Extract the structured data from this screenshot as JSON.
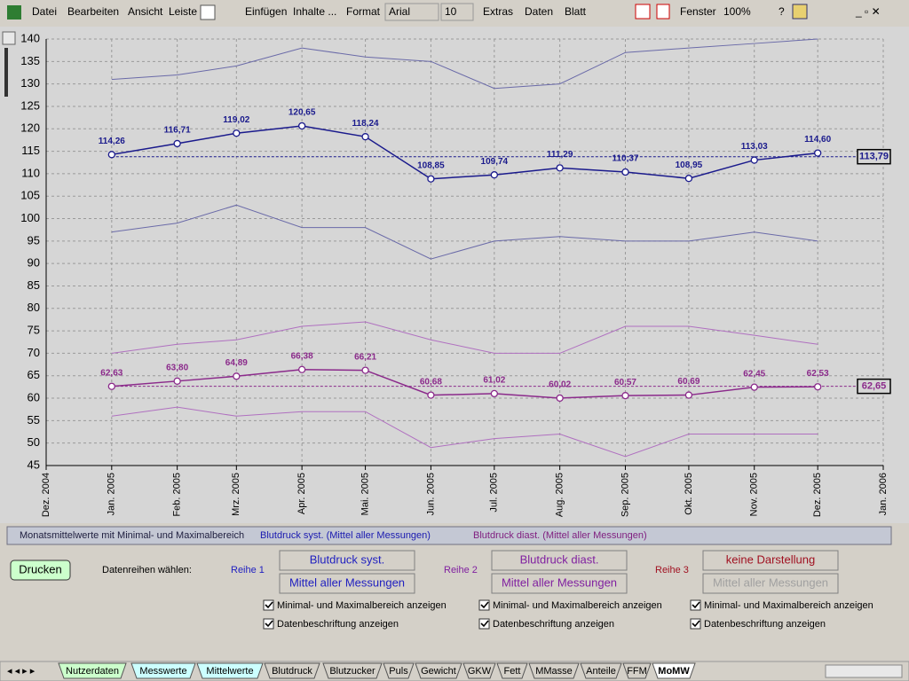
{
  "menu": {
    "items": [
      "Datei",
      "Bearbeiten",
      "Ansicht",
      "Leiste",
      "Einfügen",
      "Inhalte ...",
      "Format",
      "Extras",
      "Daten",
      "Blatt",
      "Fenster",
      "?"
    ],
    "font": "Arial",
    "size": "10",
    "zoom": "100%"
  },
  "chart_data": {
    "type": "line",
    "x": [
      "2005-01",
      "2005-02",
      "2005-03",
      "2005-04",
      "2005-05",
      "2005-06",
      "2005-07",
      "2005-08",
      "2005-09",
      "2005-10",
      "2005-11",
      "2005-12"
    ],
    "xlim": [
      "2004-12",
      "2006-01"
    ],
    "xticks": [
      {
        "value": "2004-12",
        "label": "Dez. 2004"
      },
      {
        "value": "2005-01",
        "label": "Jan. 2005"
      },
      {
        "value": "2005-02",
        "label": "Feb. 2005"
      },
      {
        "value": "2005-03",
        "label": "Mrz. 2005"
      },
      {
        "value": "2005-04",
        "label": "Apr. 2005"
      },
      {
        "value": "2005-05",
        "label": "Mai. 2005"
      },
      {
        "value": "2005-06",
        "label": "Jun. 2005"
      },
      {
        "value": "2005-07",
        "label": "Jul. 2005"
      },
      {
        "value": "2005-08",
        "label": "Aug. 2005"
      },
      {
        "value": "2005-09",
        "label": "Sep. 2005"
      },
      {
        "value": "2005-10",
        "label": "Okt. 2005"
      },
      {
        "value": "2005-11",
        "label": "Nov. 2005"
      },
      {
        "value": "2005-12",
        "label": "Dez. 2005"
      },
      {
        "value": "2006-01",
        "label": "Jan. 2006"
      }
    ],
    "ylim": [
      45,
      140
    ],
    "yticks": [
      45,
      50,
      55,
      60,
      65,
      70,
      75,
      80,
      85,
      90,
      95,
      100,
      105,
      110,
      115,
      120,
      125,
      130,
      135,
      140
    ],
    "grid": true,
    "series": [
      {
        "color": "#6a6aa8",
        "values": [
          131,
          132,
          134,
          138,
          136,
          135,
          129,
          130,
          137,
          138,
          139,
          140
        ]
      },
      {
        "color": "#1a1a8c",
        "markers": true,
        "values": [
          114.26,
          116.71,
          119.02,
          120.65,
          118.24,
          108.85,
          109.74,
          111.29,
          110.37,
          108.95,
          113.03,
          114.6
        ],
        "value_labels": [
          "114,26",
          "116,71",
          "119,02",
          "120,65",
          "118,24",
          "108,85",
          "109,74",
          "111,29",
          "110,37",
          "108,95",
          "113,03",
          "114,60"
        ]
      },
      {
        "color": "#6a6aa8",
        "values": [
          97,
          99,
          103,
          98,
          98,
          91,
          95,
          96,
          95,
          95,
          97,
          95
        ]
      },
      {
        "color": "#b070c0",
        "values": [
          70,
          72,
          73,
          76,
          77,
          73,
          70,
          70,
          76,
          76,
          74,
          72
        ]
      },
      {
        "color": "#8b2a8b",
        "markers": true,
        "values": [
          62.63,
          63.8,
          64.89,
          66.38,
          66.21,
          60.68,
          61.02,
          60.02,
          60.57,
          60.69,
          62.45,
          62.53
        ],
        "value_labels": [
          "62,63",
          "63,80",
          "64,89",
          "66,38",
          "66,21",
          "60,68",
          "61,02",
          "60,02",
          "60,57",
          "60,69",
          "62,45",
          "62,53"
        ]
      },
      {
        "color": "#b070c0",
        "values": [
          56,
          58,
          56,
          57,
          57,
          49,
          51,
          52,
          47,
          52,
          52,
          52
        ]
      }
    ],
    "reference_lines": [
      {
        "value": 113.79,
        "label": "113,79",
        "color": "#1a1a8c"
      },
      {
        "value": 62.65,
        "label": "62,65",
        "color": "#8b2a8b"
      }
    ]
  },
  "legend_bar": [
    {
      "text": "Monatsmittelwerte mit Minimal- und Maximalbereich",
      "color": "#202040"
    },
    {
      "text": "Blutdruck syst. (Mittel aller Messungen)",
      "color": "#1a1ab0"
    },
    {
      "text": "Blutdruck diast. (Mittel aller Messungen)",
      "color": "#802080"
    }
  ],
  "controls": {
    "print": "Drucken",
    "select_label": "Datenreihen wählen:",
    "rows": [
      {
        "label": "Reihe 1",
        "color": "#2020c0",
        "series": "Blutdruck syst.",
        "mode": "Mittel aller Messungen",
        "mode_enabled": true,
        "checks": [
          {
            "text": "Minimal- und Maximalbereich anzeigen",
            "checked": true
          },
          {
            "text": "Datenbeschriftung anzeigen",
            "checked": true
          }
        ]
      },
      {
        "label": "Reihe 2",
        "color": "#8020a0",
        "series": "Blutdruck diast.",
        "mode": "Mittel aller Messungen",
        "mode_enabled": true,
        "checks": [
          {
            "text": "Minimal- und Maximalbereich anzeigen",
            "checked": true
          },
          {
            "text": "Datenbeschriftung anzeigen",
            "checked": true
          }
        ]
      },
      {
        "label": "Reihe 3",
        "color": "#a01020",
        "series": "keine Darstellung",
        "mode": "Mittel aller Messungen",
        "mode_enabled": false,
        "checks": [
          {
            "text": "Minimal- und Maximalbereich anzeigen",
            "checked": true
          },
          {
            "text": "Datenbeschriftung anzeigen",
            "checked": true
          }
        ]
      }
    ]
  },
  "tabs": [
    {
      "name": "Nutzerdaten",
      "color": "#ccffcc"
    },
    {
      "name": "Messwerte",
      "color": "#ccffff"
    },
    {
      "name": "Mittelwerte",
      "color": "#ccffff"
    },
    {
      "name": "Blutdruck",
      "color": "#d4d0c8"
    },
    {
      "name": "Blutzucker",
      "color": "#d4d0c8"
    },
    {
      "name": "Puls",
      "color": "#d4d0c8"
    },
    {
      "name": "Gewicht",
      "color": "#d4d0c8"
    },
    {
      "name": "GKW",
      "color": "#d4d0c8"
    },
    {
      "name": "Fett",
      "color": "#d4d0c8"
    },
    {
      "name": "MMasse",
      "color": "#d4d0c8"
    },
    {
      "name": "Anteile",
      "color": "#d4d0c8"
    },
    {
      "name": "FFM",
      "color": "#d4d0c8"
    },
    {
      "name": "MoMW",
      "color": "#ffffff",
      "active": true
    }
  ]
}
